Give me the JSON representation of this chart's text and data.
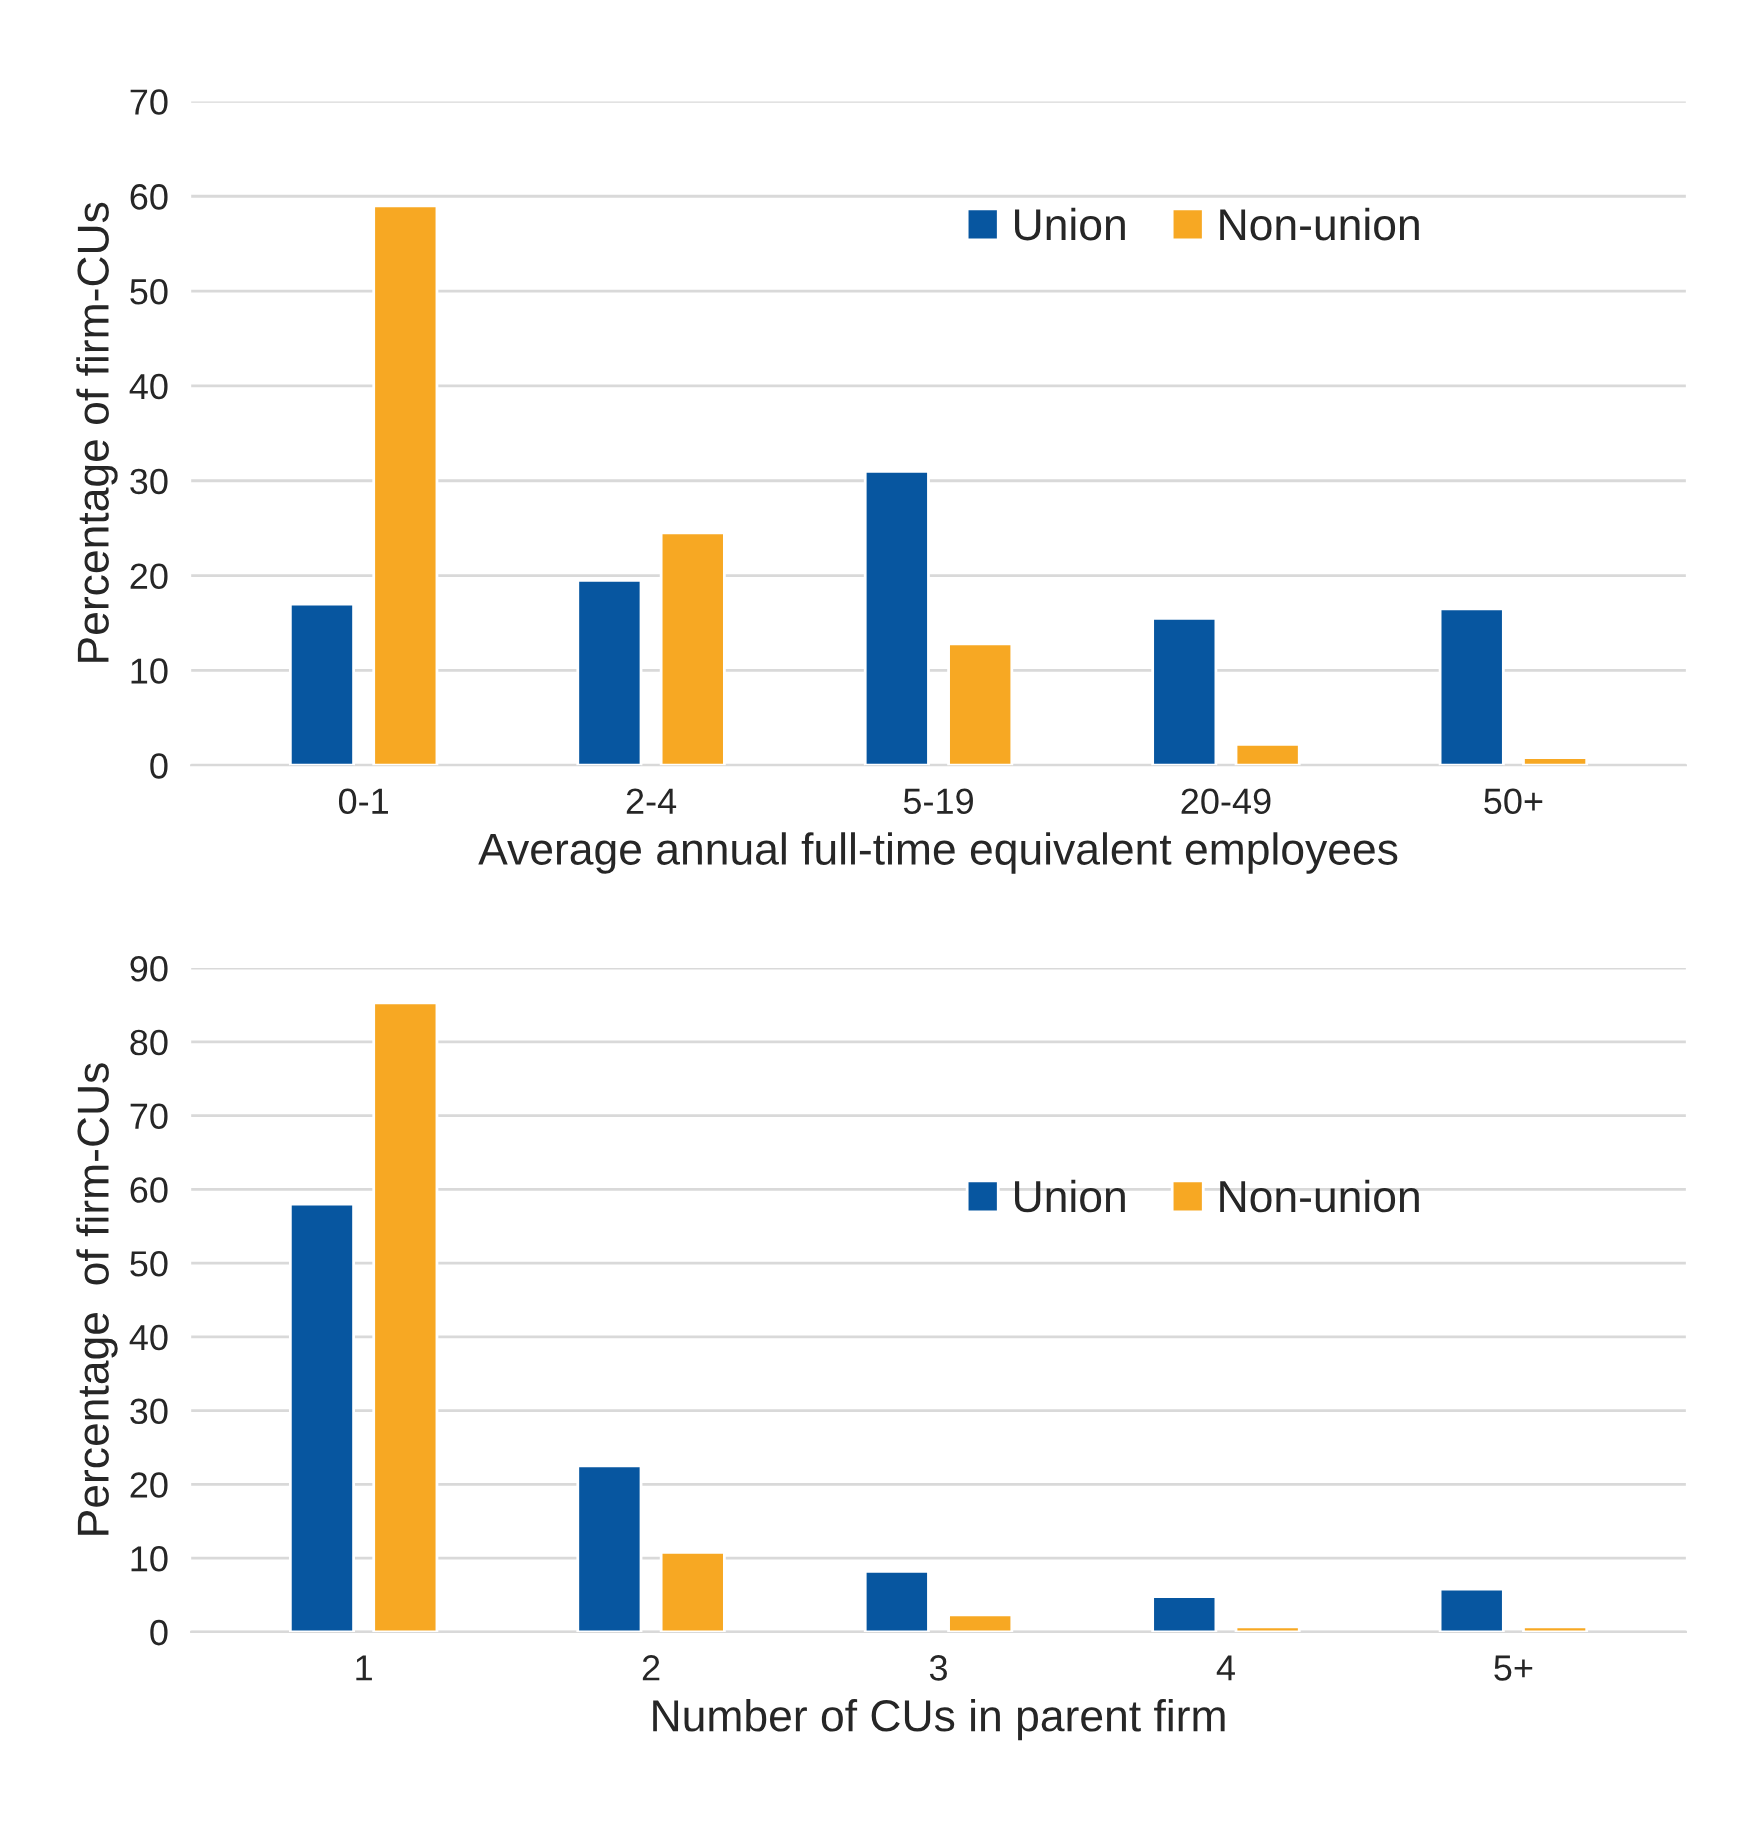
{
  "chart_data": [
    {
      "type": "bar",
      "categories": [
        "0-1",
        "2-4",
        "5-19",
        "20-49",
        "50+"
      ],
      "xlabel": "Average annual full-time equivalent employees",
      "ylabel": "Percentage of firm-CUs",
      "ylim": [
        0,
        70
      ],
      "yticks": [
        0,
        10,
        20,
        30,
        40,
        50,
        60,
        70
      ],
      "grid": "y",
      "legend": "top right",
      "series": [
        {
          "name": "Union",
          "color": "#0756a0",
          "values": [
            17,
            19.5,
            31,
            15.5,
            16.5
          ]
        },
        {
          "name": "Non-union",
          "color": "#f7a823",
          "values": [
            59,
            24.5,
            12.8,
            2.2,
            0.8
          ]
        }
      ]
    },
    {
      "type": "bar",
      "categories": [
        "1",
        "2",
        "3",
        "4",
        "5+"
      ],
      "xlabel": "Number of CUs in parent firm",
      "ylabel": "Percentage  of firm-CUs",
      "ylim": [
        0,
        90
      ],
      "yticks": [
        0,
        10,
        20,
        30,
        40,
        50,
        60,
        70,
        80,
        90
      ],
      "grid": "y",
      "legend": "right",
      "series": [
        {
          "name": "Union",
          "color": "#0756a0",
          "values": [
            58,
            22.5,
            8.2,
            4.8,
            5.8
          ]
        },
        {
          "name": "Non-union",
          "color": "#f7a823",
          "values": [
            85.3,
            10.8,
            2.3,
            0.7,
            0.7
          ]
        }
      ]
    }
  ]
}
